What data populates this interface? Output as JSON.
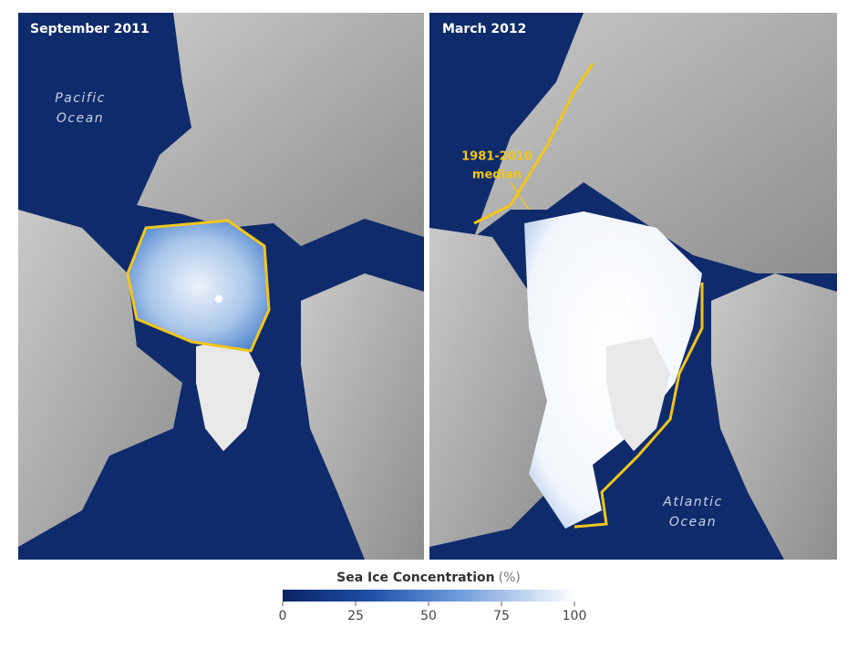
{
  "panels": [
    {
      "title": "September 2011",
      "ocean_label": [
        "Pacific",
        "Ocean"
      ]
    },
    {
      "title": "March 2012",
      "ocean_label": [
        "Atlantic",
        "Ocean"
      ],
      "median_label": [
        "1981-2010",
        "median"
      ]
    }
  ],
  "legend": {
    "title": "Sea Ice Concentration",
    "unit": "(%)",
    "range": [
      0,
      100
    ],
    "ticks": [
      0,
      25,
      50,
      75,
      100
    ]
  }
}
